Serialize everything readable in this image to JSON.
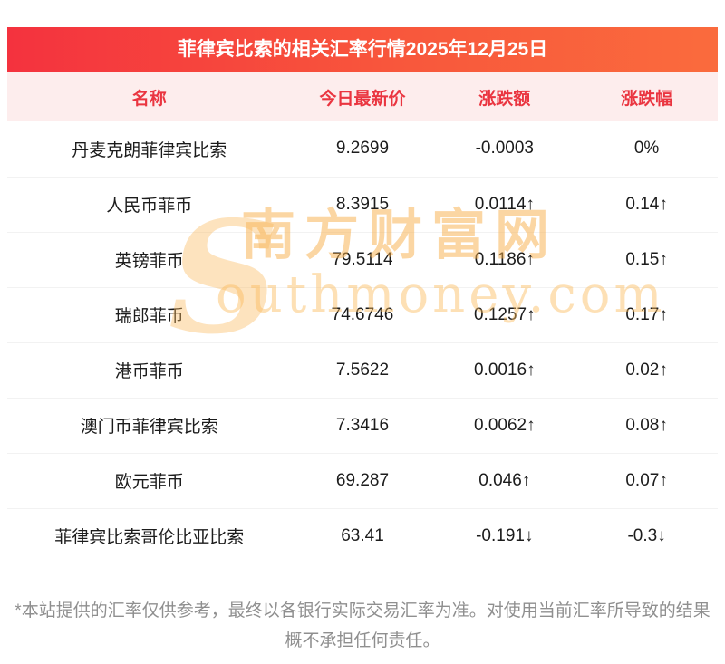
{
  "title": "菲律宾比索的相关汇率行情2025年12月25日",
  "table": {
    "headers": [
      "名称",
      "今日最新价",
      "涨跌额",
      "涨跌幅"
    ],
    "rows": [
      {
        "name": "丹麦克朗菲律宾比索",
        "price": "9.2699",
        "change": "-0.0003",
        "pct": "0%",
        "trend": "flat"
      },
      {
        "name": "人民币菲币",
        "price": "8.3915",
        "change": "0.0114↑",
        "pct": "0.14↑",
        "trend": "up"
      },
      {
        "name": "英镑菲币",
        "price": "79.5114",
        "change": "0.1186↑",
        "pct": "0.15↑",
        "trend": "up"
      },
      {
        "name": "瑞郎菲币",
        "price": "74.6746",
        "change": "0.1257↑",
        "pct": "0.17↑",
        "trend": "up"
      },
      {
        "name": "港币菲币",
        "price": "7.5622",
        "change": "0.0016↑",
        "pct": "0.02↑",
        "trend": "up"
      },
      {
        "name": "澳门币菲律宾比索",
        "price": "7.3416",
        "change": "0.0062↑",
        "pct": "0.08↑",
        "trend": "up"
      },
      {
        "name": "欧元菲币",
        "price": "69.287",
        "change": "0.046↑",
        "pct": "0.07↑",
        "trend": "up"
      },
      {
        "name": "菲律宾比索哥伦比亚比索",
        "price": "63.41",
        "change": "-0.191↓",
        "pct": "-0.3↓",
        "trend": "down"
      }
    ]
  },
  "watermark": {
    "s_glyph": "S",
    "cn": "南方财富网",
    "en": "outhmoney.com"
  },
  "disclaimer": "*本站提供的汇率仅供参考，最终以各银行实际交易汇率为准。对使用当前汇率所导致的结果概不承担任何责任。",
  "colors": {
    "up": "#e53a31",
    "down": "#1ca05c",
    "flat": "#1c1c1c",
    "header_bg": "#fdeded",
    "header_text": "#ea3540"
  }
}
